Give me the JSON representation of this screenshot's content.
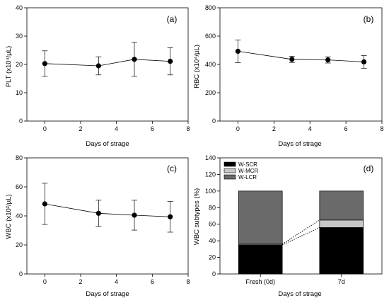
{
  "chart_data": [
    {
      "type": "line",
      "panel_label": "(a)",
      "ylabel": "PLT (x10⁴/µL)",
      "xlabel": "Days of strage",
      "xlim": [
        -1,
        8
      ],
      "ylim": [
        0,
        40
      ],
      "xticks": [
        0,
        2,
        4,
        6,
        8
      ],
      "yticks": [
        0,
        10,
        20,
        30,
        40
      ],
      "x": [
        0,
        3,
        5,
        7
      ],
      "y": [
        20.3,
        19.5,
        21.8,
        21.1
      ],
      "error": [
        4.5,
        3.2,
        6.0,
        4.8
      ]
    },
    {
      "type": "line",
      "panel_label": "(b)",
      "ylabel": "RBC (x10⁴/µL)",
      "xlabel": "Days of strage",
      "xlim": [
        -1,
        8
      ],
      "ylim": [
        0,
        800
      ],
      "xticks": [
        0,
        2,
        4,
        6,
        8
      ],
      "yticks": [
        0,
        200,
        400,
        600,
        800
      ],
      "x": [
        0,
        3,
        5,
        7
      ],
      "y": [
        493,
        436,
        432,
        418
      ],
      "error": [
        80,
        22,
        22,
        45
      ]
    },
    {
      "type": "line",
      "panel_label": "(c)",
      "ylabel": "WBC (x10²/µL)",
      "xlabel": "Days of strage",
      "xlim": [
        -1,
        8
      ],
      "ylim": [
        0,
        80
      ],
      "xticks": [
        0,
        2,
        4,
        6,
        8
      ],
      "yticks": [
        0,
        20,
        40,
        60,
        80
      ],
      "x": [
        0,
        3,
        5,
        7
      ],
      "y": [
        48.3,
        41.8,
        40.5,
        39.4
      ],
      "error": [
        14.2,
        9.0,
        10.3,
        10.6
      ]
    },
    {
      "type": "bar",
      "stacked": true,
      "panel_label": "(d)",
      "ylabel": "WBC subtypes (%)",
      "xlabel": "Days of strage",
      "categories": [
        "Fresh (0d)",
        "7d"
      ],
      "ylim": [
        0,
        140
      ],
      "yticks": [
        0,
        20,
        40,
        60,
        80,
        100,
        120,
        140
      ],
      "legend_position": "top-left",
      "series": [
        {
          "name": "W-SCR",
          "color": "#000000",
          "values": [
            35,
            56
          ]
        },
        {
          "name": "W-MCR",
          "color": "#c8c8c8",
          "values": [
            1,
            9
          ]
        },
        {
          "name": "W-LCR",
          "color": "#6a6a6a",
          "values": [
            64,
            35
          ]
        }
      ]
    }
  ]
}
